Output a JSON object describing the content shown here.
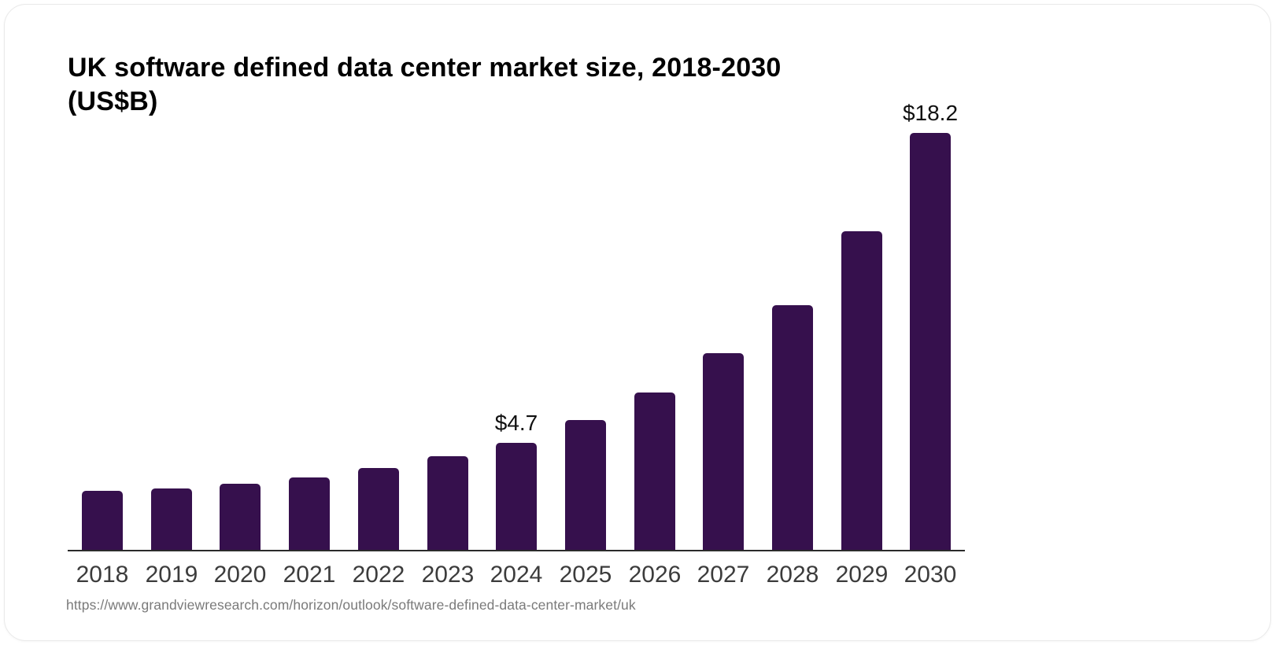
{
  "title": {
    "line1": "UK software defined data center market size, 2018-2030",
    "line2": "(US$B)",
    "full": "UK software defined data center market size, 2018-2030 (US$B)"
  },
  "source_url": "https://www.grandviewresearch.com/horizon/outlook/software-defined-data-center-market/uk",
  "colors": {
    "bar": "#36104d",
    "axis": "#2b2b2b",
    "title": "#000000",
    "year_label": "#3c3c3c",
    "value_label": "#101010",
    "url_text": "#7a7a7a",
    "background": "#ffffff"
  },
  "chart_data": {
    "type": "bar",
    "title": "UK software defined data center market size, 2018-2030 (US$B)",
    "xlabel": "",
    "ylabel": "US$B",
    "ylim": [
      0,
      18.2
    ],
    "grid": false,
    "legend": false,
    "categories": [
      "2018",
      "2019",
      "2020",
      "2021",
      "2022",
      "2023",
      "2024",
      "2025",
      "2026",
      "2027",
      "2028",
      "2029",
      "2030"
    ],
    "values": [
      2.6,
      2.7,
      2.9,
      3.2,
      3.6,
      4.1,
      4.7,
      5.7,
      6.9,
      8.6,
      10.7,
      13.9,
      18.2
    ],
    "points": [
      {
        "year": "2018",
        "value": 2.6,
        "label": null
      },
      {
        "year": "2019",
        "value": 2.7,
        "label": null
      },
      {
        "year": "2020",
        "value": 2.9,
        "label": null
      },
      {
        "year": "2021",
        "value": 3.2,
        "label": null
      },
      {
        "year": "2022",
        "value": 3.6,
        "label": null
      },
      {
        "year": "2023",
        "value": 4.1,
        "label": null
      },
      {
        "year": "2024",
        "value": 4.7,
        "label": "$4.7"
      },
      {
        "year": "2025",
        "value": 5.7,
        "label": null
      },
      {
        "year": "2026",
        "value": 6.9,
        "label": null
      },
      {
        "year": "2027",
        "value": 8.6,
        "label": null
      },
      {
        "year": "2028",
        "value": 10.7,
        "label": null
      },
      {
        "year": "2029",
        "value": 13.9,
        "label": null
      },
      {
        "year": "2030",
        "value": 18.2,
        "label": "$18.2"
      }
    ]
  }
}
